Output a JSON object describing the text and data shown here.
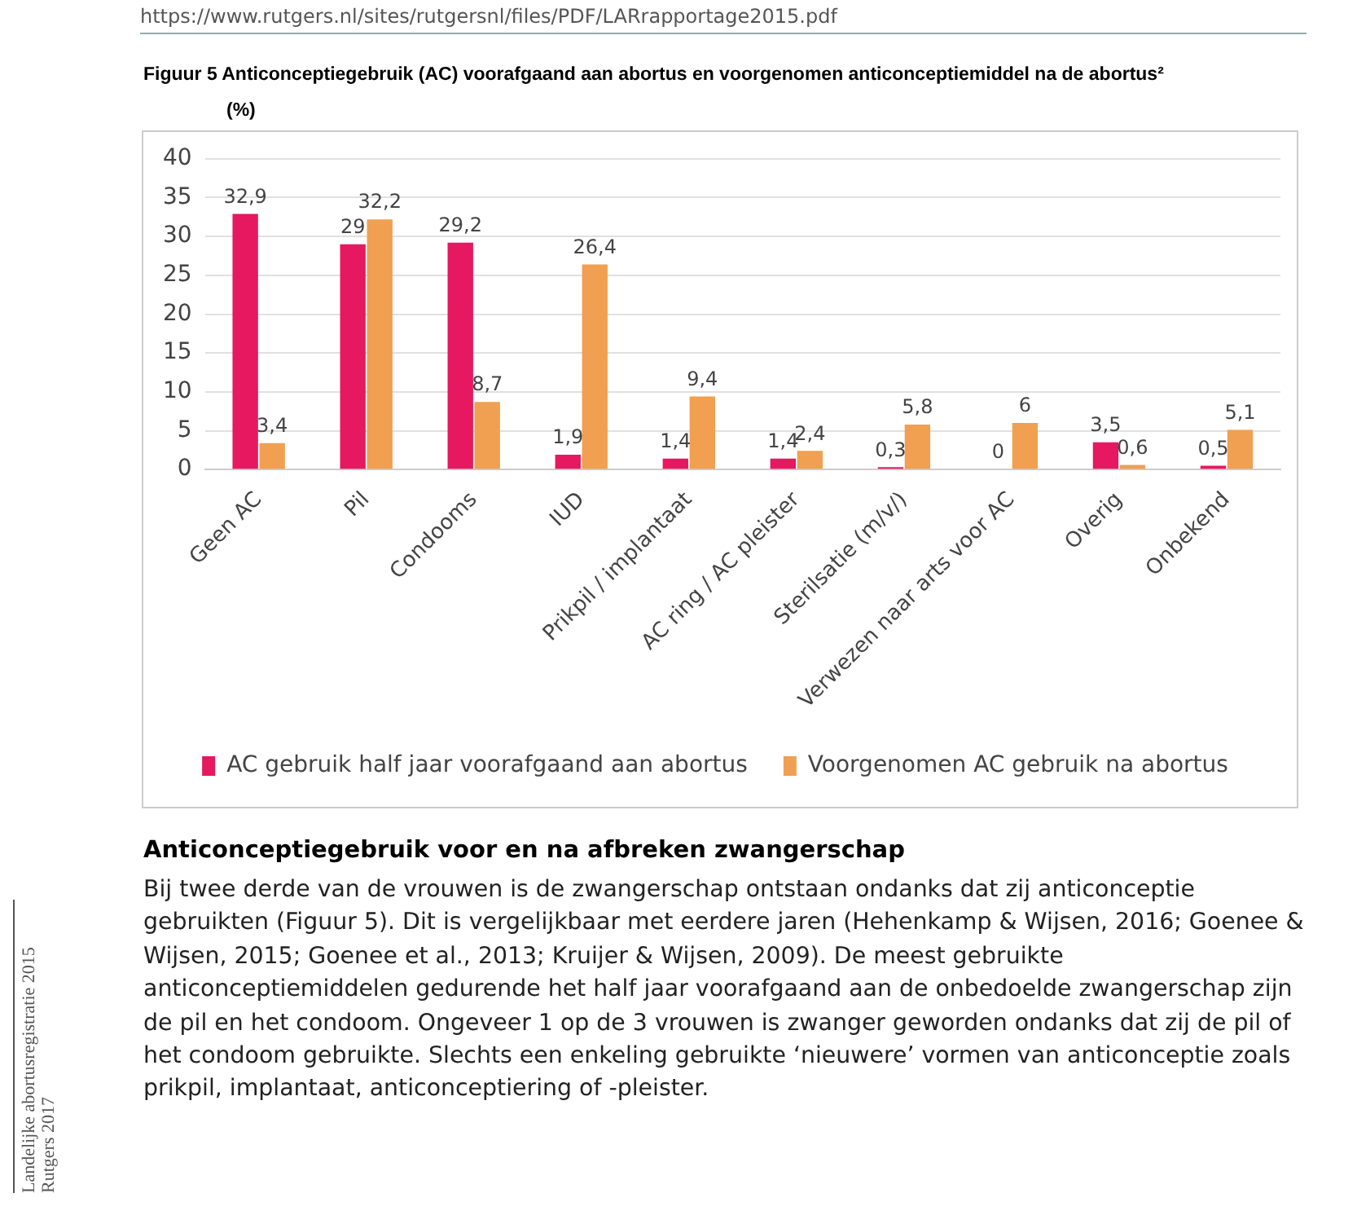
{
  "chart_data": {
    "type": "bar",
    "title": "Figuur 5  Anticonceptiegebruik (AC) voorafgaand aan abortus en voorgenomen anticonceptiemiddel na de abortus²",
    "ylabel": "(%)",
    "categories": [
      "Geen AC",
      "Pil",
      "Condooms",
      "IUD",
      "Prikpil / implantaat",
      "AC ring / AC pleister",
      "Sterilsatie (m/v/)",
      "Verwezen naar arts voor AC",
      "Overig",
      "Onbekend"
    ],
    "series": [
      {
        "name": "AC gebruik half jaar voorafgaand aan abortus",
        "color": "#e6185f",
        "values": [
          32.9,
          29,
          29.2,
          1.9,
          1.4,
          1.4,
          0.3,
          0,
          3.5,
          0.5
        ],
        "value_labels": [
          "32,9",
          "29",
          "29,2",
          "1,9",
          "1,4",
          "1,4",
          "0,3",
          "0",
          "3,5",
          "0,5"
        ]
      },
      {
        "name": "Voorgenomen AC gebruik na abortus",
        "color": "#f0a050",
        "values": [
          3.4,
          32.2,
          8.7,
          26.4,
          9.4,
          2.4,
          5.8,
          6,
          0.6,
          5.1
        ],
        "value_labels": [
          "3,4",
          "32,2",
          "8,7",
          "26,4",
          "9,4",
          "2,4",
          "5,8",
          "6",
          "0,6",
          "5,1"
        ]
      }
    ],
    "ylim": [
      0,
      40
    ],
    "yticks": [
      0,
      5,
      10,
      15,
      20,
      25,
      30,
      35,
      40
    ],
    "grid": "y",
    "legend": "bottom",
    "annotations": [
      "https://www.rutgers.nl/sites/rutgersnl/files/PDF/LARrapportage2015.pdf",
      "Anticonceptiegebruik voor en na afbreken zwangerschap",
      "Bij twee derde van de vrouwen is de zwangerschap ontstaan ondanks dat zij anticonceptie gebruikten (Figuur 5). Dit is vergelijkbaar met eerdere jaren (Hehenkamp & Wijsen, 2016; Goenee & Wijsen, 2015; Goenee et al., 2013; Kruijer & Wijsen, 2009). De meest gebruikte anticonceptiemiddelen gedurende het half jaar voorafgaand aan de onbedoelde zwangerschap zijn de pil en het condoom. Ongeveer 1 op de 3 vrouwen is zwanger geworden ondanks dat zij de pil of het condoom gebruikte. Slechts een enkeling gebruikte ‘nieuwere’ vormen van anticonceptie zoals prikpil, implantaat, anticonceptiering of -pleister.",
      "Landelijke abortusregistratie 2015",
      "Rutgers 2017"
    ]
  }
}
